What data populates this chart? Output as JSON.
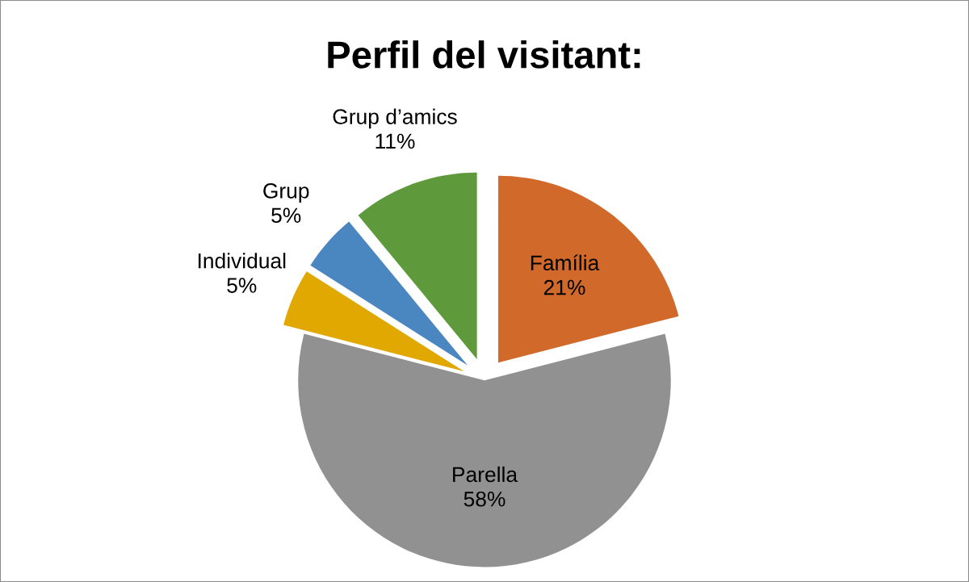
{
  "chart_data": {
    "type": "pie",
    "title": "Perfil del visitant:",
    "categories": [
      "Família",
      "Parella",
      "Individual",
      "Grup",
      "Grup d’amics"
    ],
    "values": [
      21,
      58,
      5,
      5,
      11
    ],
    "value_labels": [
      "21%",
      "58%",
      "5%",
      "5%",
      "11%"
    ],
    "colors": [
      "#d0692a",
      "#919191",
      "#e0a800",
      "#4a86c0",
      "#5e9a3c"
    ],
    "legend": false
  }
}
